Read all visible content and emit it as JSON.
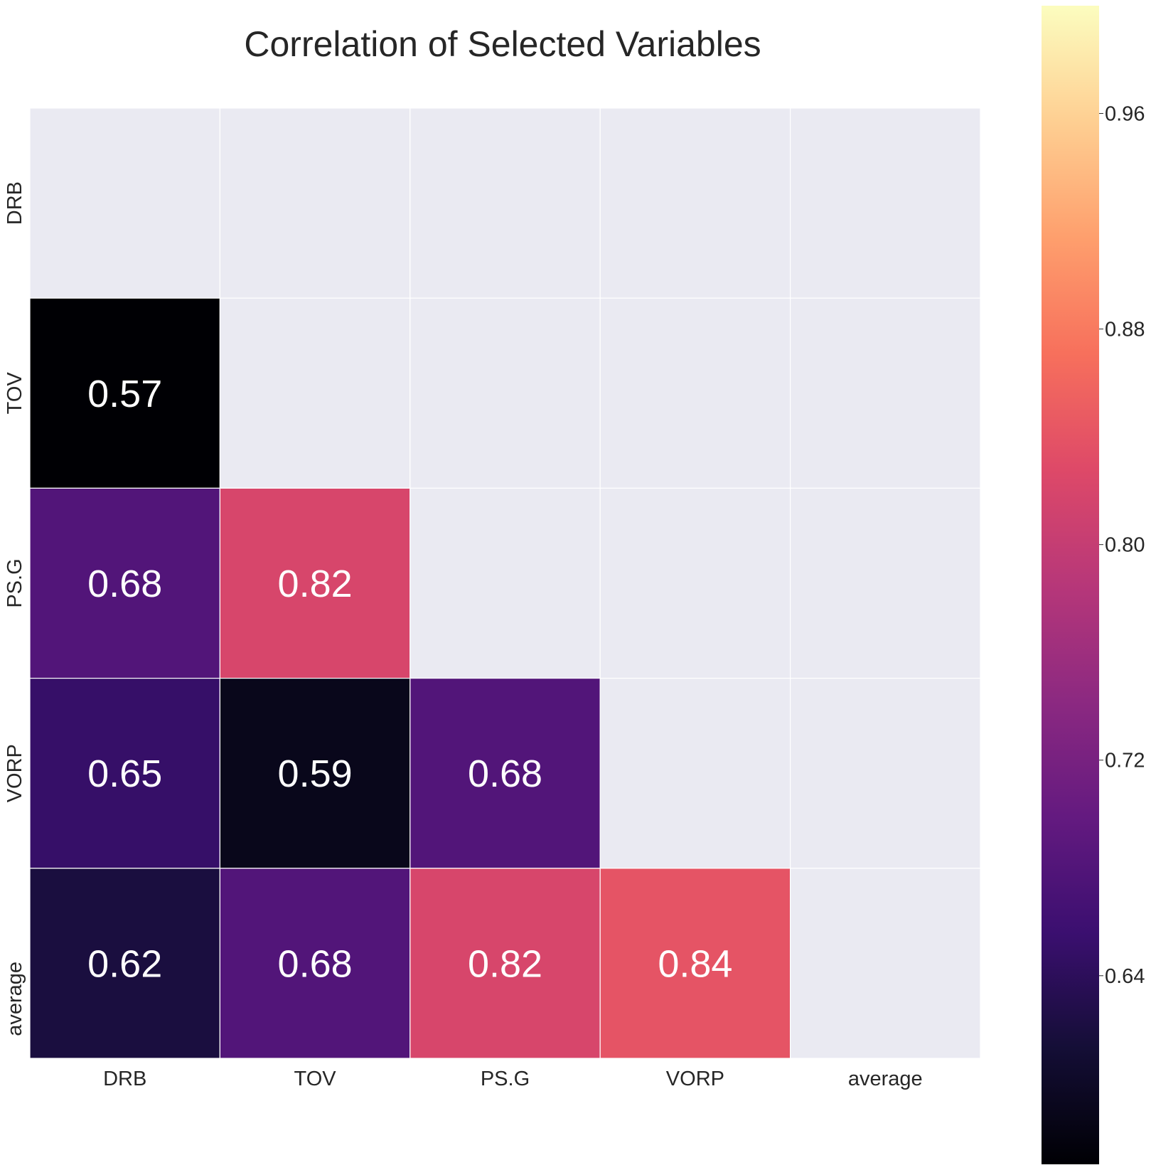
{
  "chart_data": {
    "type": "heatmap",
    "title": "Correlation of Selected Variables",
    "row_labels": [
      "DRB",
      "TOV",
      "PS.G",
      "VORP",
      "average"
    ],
    "col_labels": [
      "DRB",
      "TOV",
      "PS.G",
      "VORP",
      "average"
    ],
    "mask": "upper-triangle-and-diagonal",
    "values": [
      [
        null,
        null,
        null,
        null,
        null
      ],
      [
        0.57,
        null,
        null,
        null,
        null
      ],
      [
        0.68,
        0.82,
        null,
        null,
        null
      ],
      [
        0.65,
        0.59,
        0.68,
        null,
        null
      ],
      [
        0.62,
        0.68,
        0.82,
        0.84,
        null
      ]
    ],
    "value_labels": [
      [
        null,
        null,
        null,
        null,
        null
      ],
      [
        "0.57",
        null,
        null,
        null,
        null
      ],
      [
        "0.68",
        "0.82",
        null,
        null,
        null
      ],
      [
        "0.65",
        "0.59",
        "0.68",
        null,
        null
      ],
      [
        "0.62",
        "0.68",
        "0.82",
        "0.84",
        null
      ]
    ],
    "colormap": "magma",
    "colorbar": {
      "range": [
        0.57,
        1.0
      ],
      "ticks": [
        0.64,
        0.72,
        0.8,
        0.88,
        0.96
      ],
      "tick_labels": [
        "0.64",
        "0.72",
        "0.80",
        "0.88",
        "0.96"
      ]
    },
    "masked_color": "#eaeaf2",
    "xlabel": "",
    "ylabel": ""
  }
}
